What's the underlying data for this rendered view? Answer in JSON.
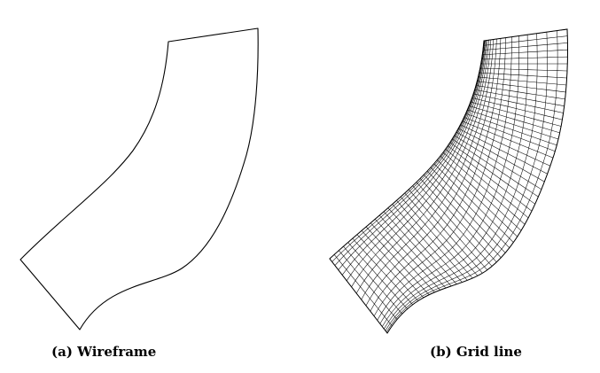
{
  "figure": {
    "panels": [
      {
        "id": "a",
        "caption": "(a) Wireframe"
      },
      {
        "id": "b",
        "caption": "(b) Grid line"
      }
    ],
    "colors": {
      "background": "#ffffff",
      "line": "#000000"
    }
  }
}
